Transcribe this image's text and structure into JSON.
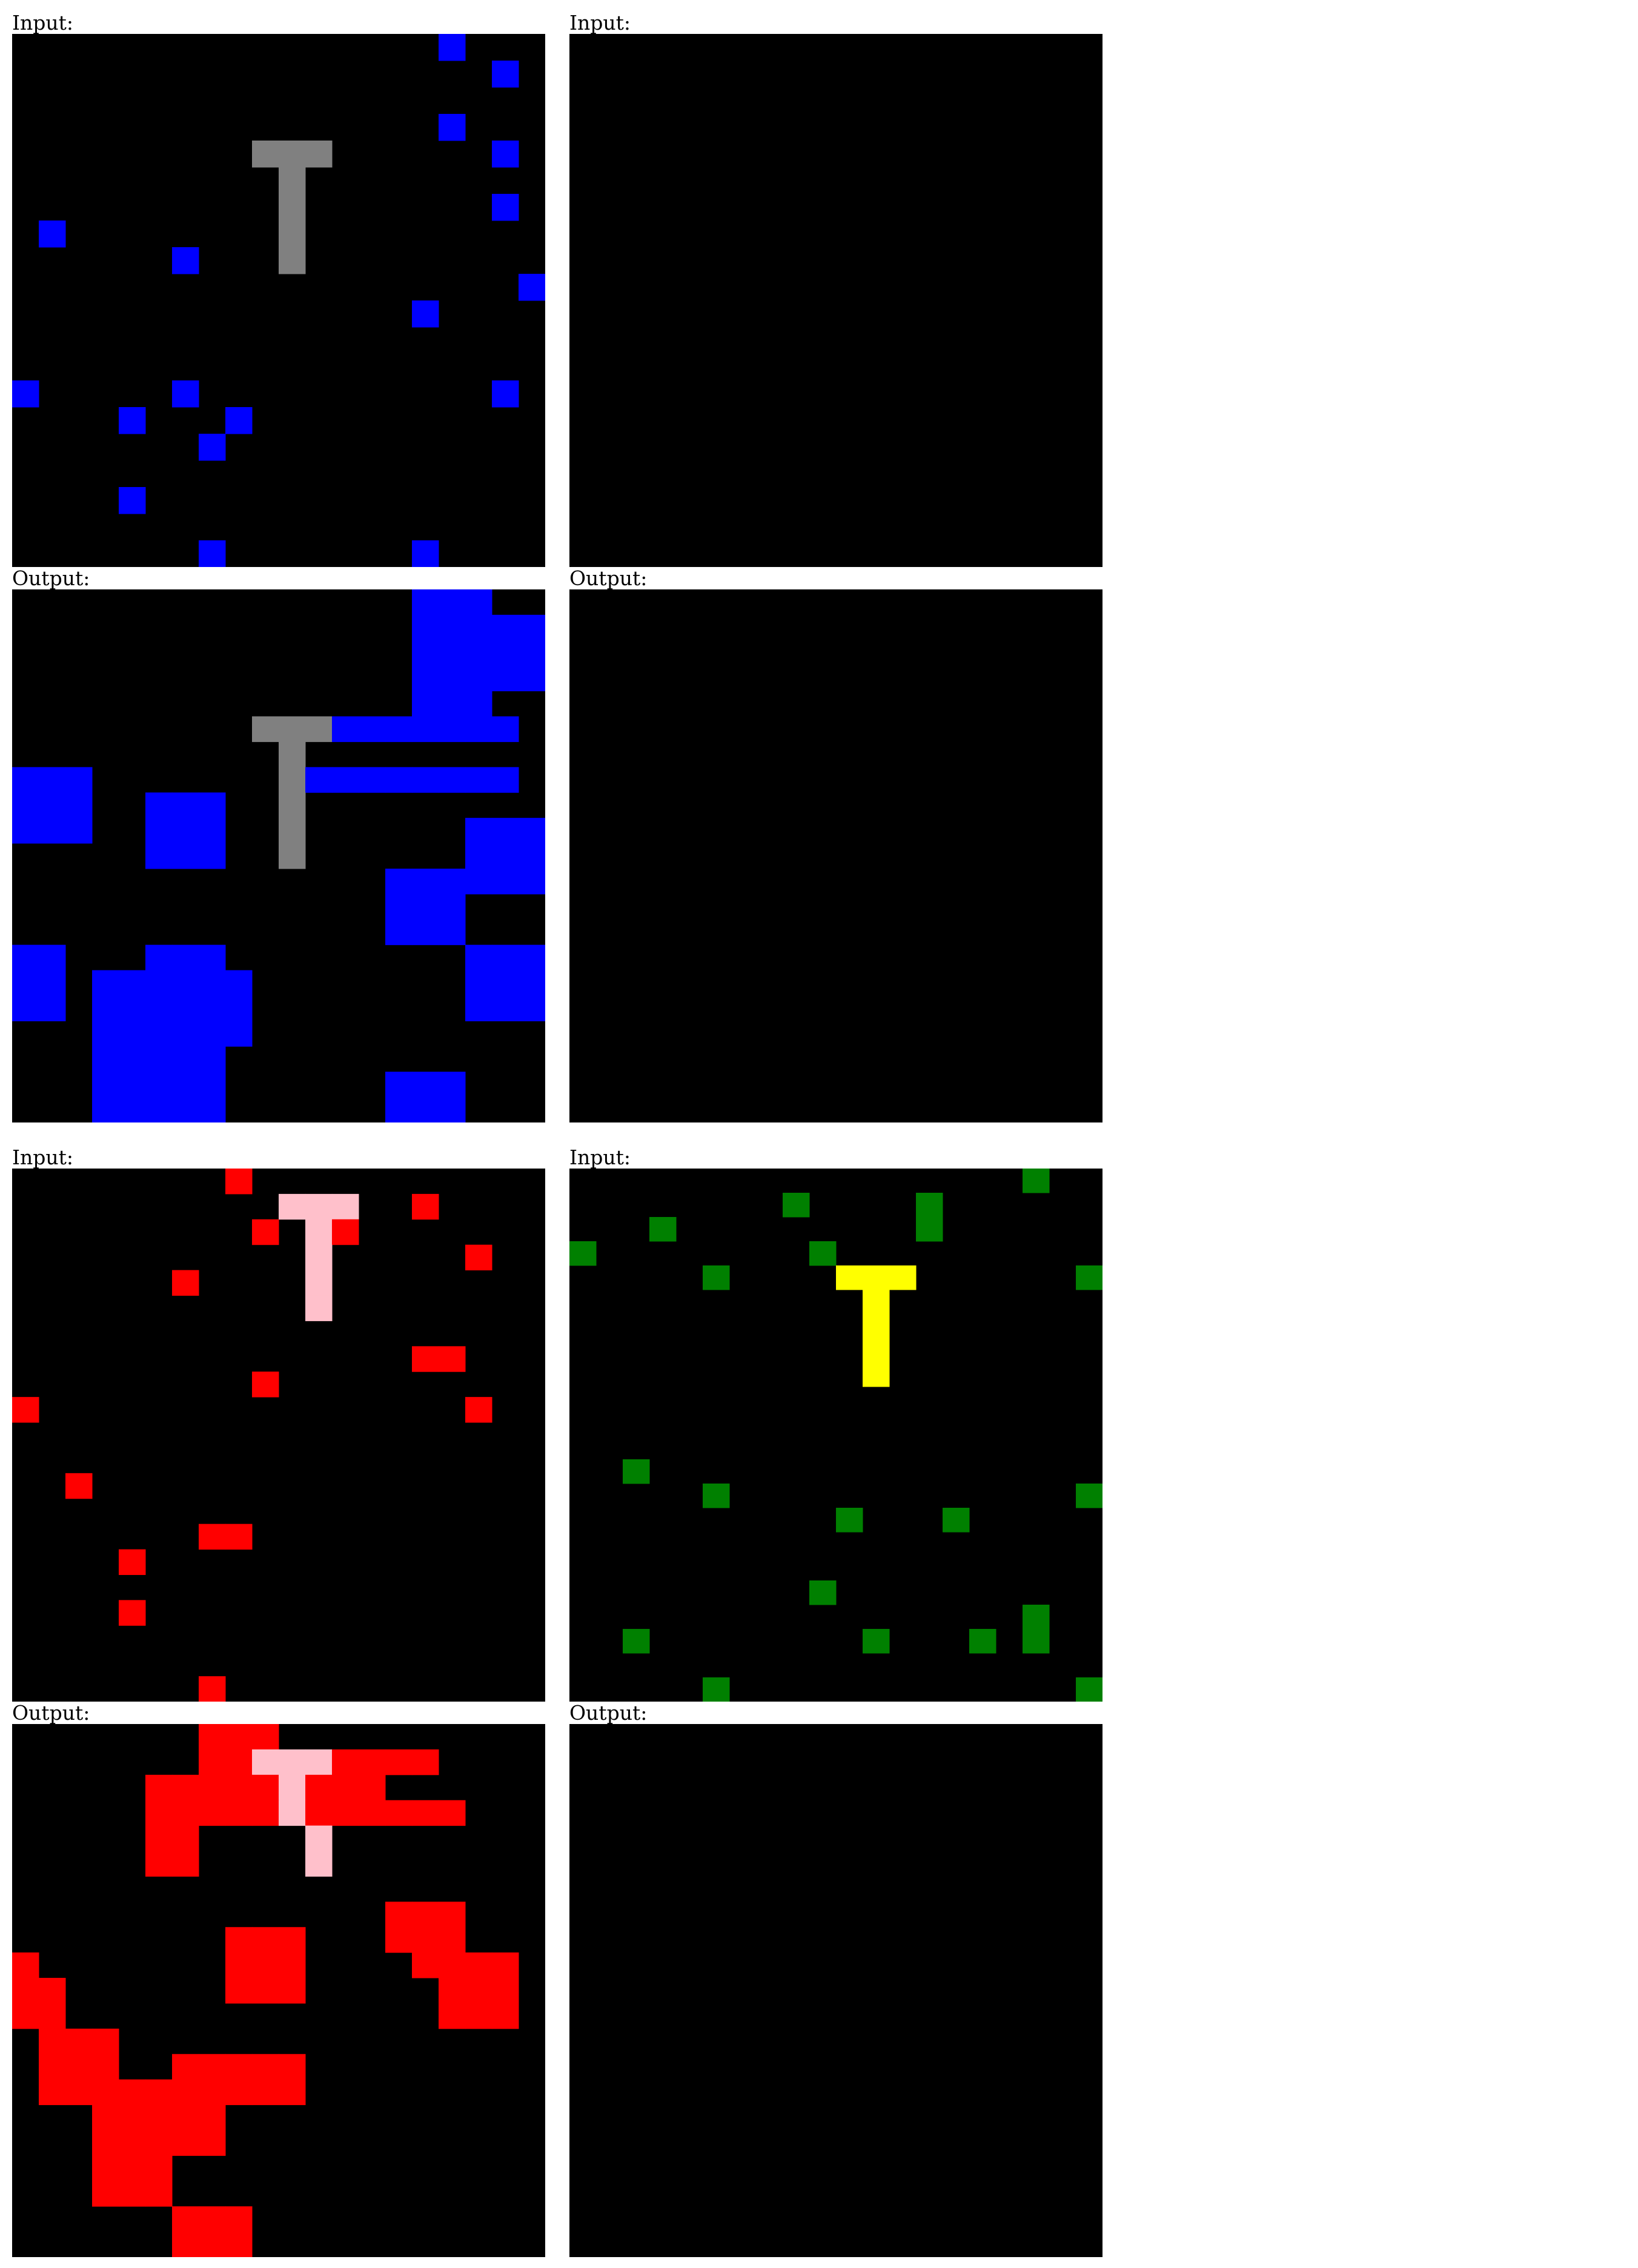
{
  "labels": {
    "input": "Input:",
    "output": "Output:"
  },
  "colors": {
    "0": "#000000",
    "1": "#0000ff",
    "2": "#ff0000",
    "3": "#008000",
    "4": "#ffff00",
    "5": "#808080",
    "6": "#ffc0cb"
  },
  "examples": [
    {
      "input": [
        "00000000000000001000",
        "00000000000000000010",
        "00000000000000000000",
        "00000000000000001000",
        "00000000055500000010",
        "00000000005000000000",
        "00000000005000000010",
        "01000000005000000000",
        "00000010005000000000",
        "00000000000000000001",
        "00000000000000010000",
        "00000000000000000000",
        "00000000000000000000",
        "10000010000000000010",
        "00001000100000000000",
        "00000001000000000000",
        "00000000000000000000",
        "00001000000000000000",
        "00000000000000000000",
        "00000001000000010000"
      ],
      "output": [
        "00000000000000011100",
        "00000000000000011111",
        "00000000000000011111",
        "00000000000000011111",
        "00000000000000011100",
        "00000000055511111110",
        "00000000005000000000",
        "11100000005111111110",
        "11100111005000000000",
        "11100111005000000111",
        "00000111005000000111",
        "00000000000000111111",
        "00000000000000111000",
        "00000000000000111000",
        "11000111000000000111",
        "11011111100000000111",
        "11011111100000000111",
        "00011111100000000000",
        "00011111000000000000",
        "00011111000000111000",
        "00011111000000111000"
      ]
    },
    {
      "input": [
        "00000000000000000000",
        "00000000000000000000",
        "00000000000000000000",
        "00000000000000000000",
        "00000000000000000000",
        "00000000000000000000",
        "00000000000000000000",
        "00000000000000000000",
        "00000000000000000000",
        "00000000000000000000",
        "00000000000000000000",
        "00000000000000000000",
        "00000000000000000000",
        "00000000000000000000",
        "00000000000000000000",
        "00000000000000000000",
        "00000000000000000000",
        "00000000000000000000",
        "00000000000000000000",
        "00000000000000000000"
      ],
      "output": [
        "00000000000000000000",
        "00000000000000000000",
        "00000000000000000000",
        "00000000000000000000",
        "00000000000000000000",
        "00000000000000000000",
        "00000000000000000000",
        "00000000000000000000",
        "00000000000000000000",
        "00000000000000000000",
        "00000000000000000000",
        "00000000000000000000",
        "00000000000000000000",
        "00000000000000000000",
        "00000000000000000000",
        "00000000000000000000",
        "00000000000000000000",
        "00000000000000000000",
        "00000000000000000000",
        "00000000000000000000"
      ]
    },
    {
      "input": [
        "00000000200000000000",
        "00000000006660020000",
        "00000000020620000000",
        "00000000000600000200",
        "00000020000600000000",
        "00000000000600000000",
        "00000000000000000000",
        "00000000000000022000",
        "00000000020000000000",
        "20000000000000000200",
        "00000000000000000000",
        "00000000000000000000",
        "00200000000000000000",
        "00000000000000000000",
        "00000002200000000000",
        "00002000000000000000",
        "00000000000000000000",
        "00002000000000000000",
        "00000000000000000000",
        "00000000000000000000",
        "00000002000000000000"
      ],
      "output": [
        "00000002220000000000",
        "00000002266622220000",
        "00000222226222000000",
        "00000222226222222000",
        "00000220000600000000",
        "00000220000600000000",
        "00000000000000000000",
        "00000000000000222000",
        "00000000222000222000",
        "20000000222000022220",
        "22000000222000002220",
        "22000000000000002220",
        "02220000000000000000",
        "02220022222000000000",
        "02222222222000000000",
        "00022222000000000000",
        "00022222000000000000",
        "00022200000000000000",
        "00022200000000000000",
        "00000022200000000000",
        "00000022200000000000"
      ]
    },
    {
      "input": [
        "00000000000000000300",
        "00000000300003000000",
        "00030000000003000000",
        "30000000030000000000",
        "00000300004440000003",
        "00000000000400000000",
        "00000000000400000000",
        "00000000000400000000",
        "00000000000400000000",
        "00000000000000000000",
        "00000000000000000000",
        "00000000000000000000",
        "00300000000000000000",
        "00000300000000000003",
        "00000000003000300000",
        "00000000000000000000",
        "00000000000000000000",
        "00000000030000000000",
        "00000000000000000300",
        "00300000000300030300",
        "00000000000000000000",
        "00000300000000000003"
      ],
      "output": [
        "00000000000000000000",
        "00000000000000000000",
        "00000000000000000000",
        "00000000000000000000",
        "00000000000000000000",
        "00000000000000000000",
        "00000000000000000000",
        "00000000000000000000",
        "00000000000000000000",
        "00000000000000000000",
        "00000000000000000000",
        "00000000000000000000",
        "00000000000000000000",
        "00000000000000000000",
        "00000000000000000000",
        "00000000000000000000",
        "00000000000000000000",
        "00000000000000000000",
        "00000000000000000000",
        "00000000000000000000"
      ]
    }
  ]
}
